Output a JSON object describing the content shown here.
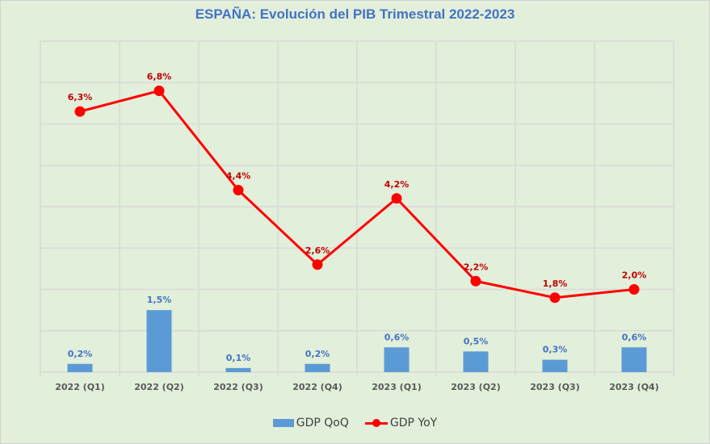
{
  "chart_data": {
    "type": "bar+line",
    "title": "ESPAÑA: Evolución del PIB Trimestral 2022-2023",
    "categories": [
      "2022 (Q1)",
      "2022 (Q2)",
      "2022 (Q3)",
      "2022 (Q4)",
      "2023 (Q1)",
      "2023 (Q2)",
      "2023 (Q3)",
      "2023 (Q4)"
    ],
    "series": [
      {
        "name": "GDP QoQ",
        "type": "bar",
        "color": "#5b9bd5",
        "label_color": "#4472c4",
        "values": [
          0.2,
          1.5,
          0.1,
          0.2,
          0.6,
          0.5,
          0.3,
          0.6
        ],
        "labels": [
          "0,2%",
          "1,5%",
          "0,1%",
          "0,2%",
          "0,6%",
          "0,5%",
          "0,3%",
          "0,6%"
        ]
      },
      {
        "name": "GDP YoY",
        "type": "line",
        "color": "#ff0000",
        "label_color": "#c00000",
        "values": [
          6.3,
          6.8,
          4.4,
          2.6,
          4.2,
          2.2,
          1.8,
          2.0
        ],
        "labels": [
          "6,3%",
          "6,8%",
          "4,4%",
          "2,6%",
          "4,2%",
          "2,2%",
          "1,8%",
          "2,0%"
        ]
      }
    ],
    "xlabel": "",
    "ylabel": "",
    "ylim": [
      0,
      8
    ],
    "ytick_step": 1,
    "y_axis_visible": false,
    "grid": true,
    "legend": "bottom"
  }
}
